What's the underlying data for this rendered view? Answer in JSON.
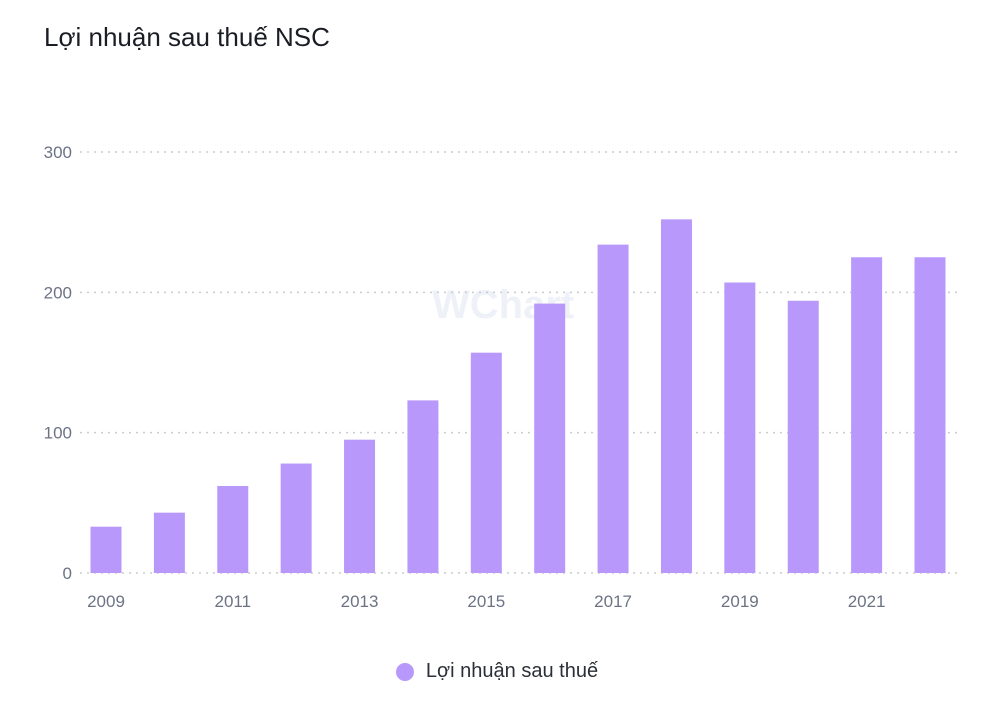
{
  "chart_data": {
    "type": "bar",
    "title": "Lợi nhuận sau thuế NSC",
    "categories": [
      "2009",
      "2010",
      "2011",
      "2012",
      "2013",
      "2014",
      "2015",
      "2016",
      "2017",
      "2018",
      "2019",
      "2020",
      "2021",
      "2022"
    ],
    "x_tick_labels": [
      "2009",
      "2011",
      "2013",
      "2015",
      "2017",
      "2019",
      "2021"
    ],
    "series": [
      {
        "name": "Lợi nhuận sau thuế",
        "values": [
          33,
          43,
          62,
          78,
          95,
          123,
          157,
          192,
          234,
          252,
          207,
          194,
          225,
          225
        ]
      }
    ],
    "ylim": [
      0,
      300
    ],
    "y_ticks": [
      0,
      100,
      200,
      300
    ],
    "grid": true,
    "legend": "bottom",
    "bar_color": "#b899fb",
    "watermark": "WChart"
  }
}
